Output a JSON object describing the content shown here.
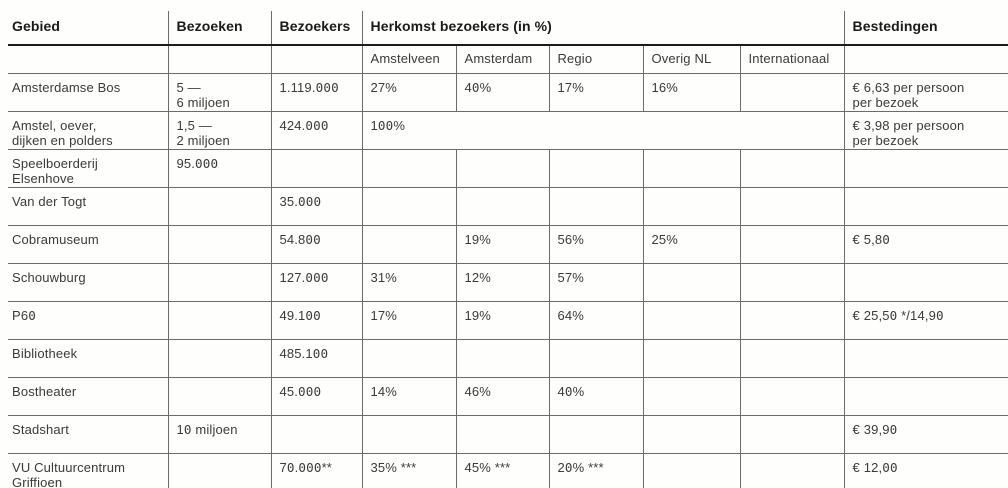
{
  "table": {
    "columns": [
      {
        "key": "gebied",
        "label": "Gebied"
      },
      {
        "key": "bezoeken",
        "label": "Bezoeken"
      },
      {
        "key": "bezoekers",
        "label": "Bezoekers"
      },
      {
        "key": "amstelveen",
        "label": "Amstelveen"
      },
      {
        "key": "amsterdam",
        "label": "Amsterdam"
      },
      {
        "key": "regio",
        "label": "Regio"
      },
      {
        "key": "overig_nl",
        "label": "Overig NL"
      },
      {
        "key": "internationaal",
        "label": "Internationaal"
      },
      {
        "key": "bestedingen",
        "label": "Bestedingen"
      }
    ],
    "group_header": {
      "label": "Herkomst bezoekers (in %)",
      "span_keys": [
        "amstelveen",
        "amsterdam",
        "regio",
        "overig_nl",
        "internationaal"
      ]
    },
    "rows": [
      {
        "gebied": "Amsterdamse Bos",
        "bezoeken": "5 —\n6 miljoen",
        "bezoekers": "1.119.000",
        "amstelveen": "27%",
        "amsterdam": "40%",
        "regio": "17%",
        "overig_nl": "16%",
        "internationaal": "",
        "bestedingen": "€ 6,63 per persoon\nper bezoek"
      },
      {
        "gebied": "Amstel, oever,\ndijken en polders",
        "bezoeken": "1,5 —\n2 miljoen",
        "bezoekers": "424.000",
        "herkomst_span": "100%",
        "bestedingen": "€ 3,98 per persoon\nper bezoek"
      },
      {
        "gebied": "Speelboerderij\nElsenhove",
        "bezoeken": "95.000",
        "bezoekers": "",
        "amstelveen": "",
        "amsterdam": "",
        "regio": "",
        "overig_nl": "",
        "internationaal": "",
        "bestedingen": ""
      },
      {
        "gebied": "Van der Togt",
        "bezoeken": "",
        "bezoekers": "35.000",
        "amstelveen": "",
        "amsterdam": "",
        "regio": "",
        "overig_nl": "",
        "internationaal": "",
        "bestedingen": ""
      },
      {
        "gebied": "Cobramuseum",
        "bezoeken": "",
        "bezoekers": "54.800",
        "amstelveen": "",
        "amsterdam": "19%",
        "regio": "56%",
        "overig_nl": "25%",
        "internationaal": "",
        "bestedingen": "€ 5,80"
      },
      {
        "gebied": "Schouwburg",
        "bezoeken": "",
        "bezoekers": "127.000",
        "amstelveen": "31%",
        "amsterdam": "12%",
        "regio": "57%",
        "overig_nl": "",
        "internationaal": "",
        "bestedingen": ""
      },
      {
        "gebied": "P60",
        "bezoeken": "",
        "bezoekers": "49.100",
        "amstelveen": "17%",
        "amsterdam": "19%",
        "regio": "64%",
        "overig_nl": "",
        "internationaal": "",
        "bestedingen": "€ 25,50 */14,90"
      },
      {
        "gebied": "Bibliotheek",
        "bezoeken": "",
        "bezoekers": "485.100",
        "amstelveen": "",
        "amsterdam": "",
        "regio": "",
        "overig_nl": "",
        "internationaal": "",
        "bestedingen": ""
      },
      {
        "gebied": "Bostheater",
        "bezoeken": "",
        "bezoekers": "45.000",
        "amstelveen": "14%",
        "amsterdam": "46%",
        "regio": "40%",
        "overig_nl": "",
        "internationaal": "",
        "bestedingen": ""
      },
      {
        "gebied": "Stadshart",
        "bezoeken": "10 miljoen",
        "bezoekers": "",
        "amstelveen": "",
        "amsterdam": "",
        "regio": "",
        "overig_nl": "",
        "internationaal": "",
        "bestedingen": "€ 39,90"
      },
      {
        "gebied": "VU Cultuurcentrum\nGriffioen",
        "bezoeken": "",
        "bezoekers": "70.000**",
        "amstelveen": "35% ***",
        "amsterdam": "45% ***",
        "regio": "20% ***",
        "overig_nl": "",
        "internationaal": "",
        "bestedingen": "€ 12,00"
      }
    ]
  }
}
